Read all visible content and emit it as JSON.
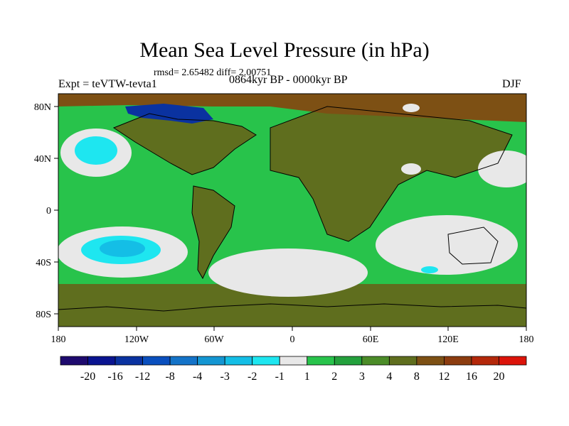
{
  "title": "Mean Sea Level Pressure (in hPa)",
  "stats": "rmsd= 2.65482 diff= 2.00751",
  "experiment": "Expt = teVTW-tevta1",
  "period": "0864kyr BP - 0000kyr BP",
  "season": "DJF",
  "map": {
    "lat_ticks": [
      "80N",
      "40N",
      "0",
      "40S",
      "80S"
    ],
    "lon_ticks": [
      "180",
      "120W",
      "60W",
      "0",
      "60E",
      "120E",
      "180"
    ]
  },
  "colorbar": {
    "labels": [
      "-20",
      "-16",
      "-12",
      "-8",
      "-4",
      "-3",
      "-2",
      "-1",
      "1",
      "2",
      "3",
      "4",
      "8",
      "12",
      "16",
      "20"
    ],
    "colors": [
      "#1e0a6e",
      "#0a1490",
      "#0a32a0",
      "#0a4fbe",
      "#1473c8",
      "#1496d2",
      "#14bee6",
      "#1ee6f0",
      "#e8e8e8",
      "#28c34b",
      "#23a03c",
      "#4b8c28",
      "#5f6e1e",
      "#7d5014",
      "#8c3c0f",
      "#b4280a",
      "#dc140a"
    ]
  },
  "palette": {
    "ocean_base": "#28c34b",
    "land_base": "#5f6e1e",
    "brown": "#7d5014",
    "white": "#e8e8e8",
    "cyan": "#1ee6f0",
    "blue": "#14bee6",
    "dark_blue": "#0a32a0"
  }
}
